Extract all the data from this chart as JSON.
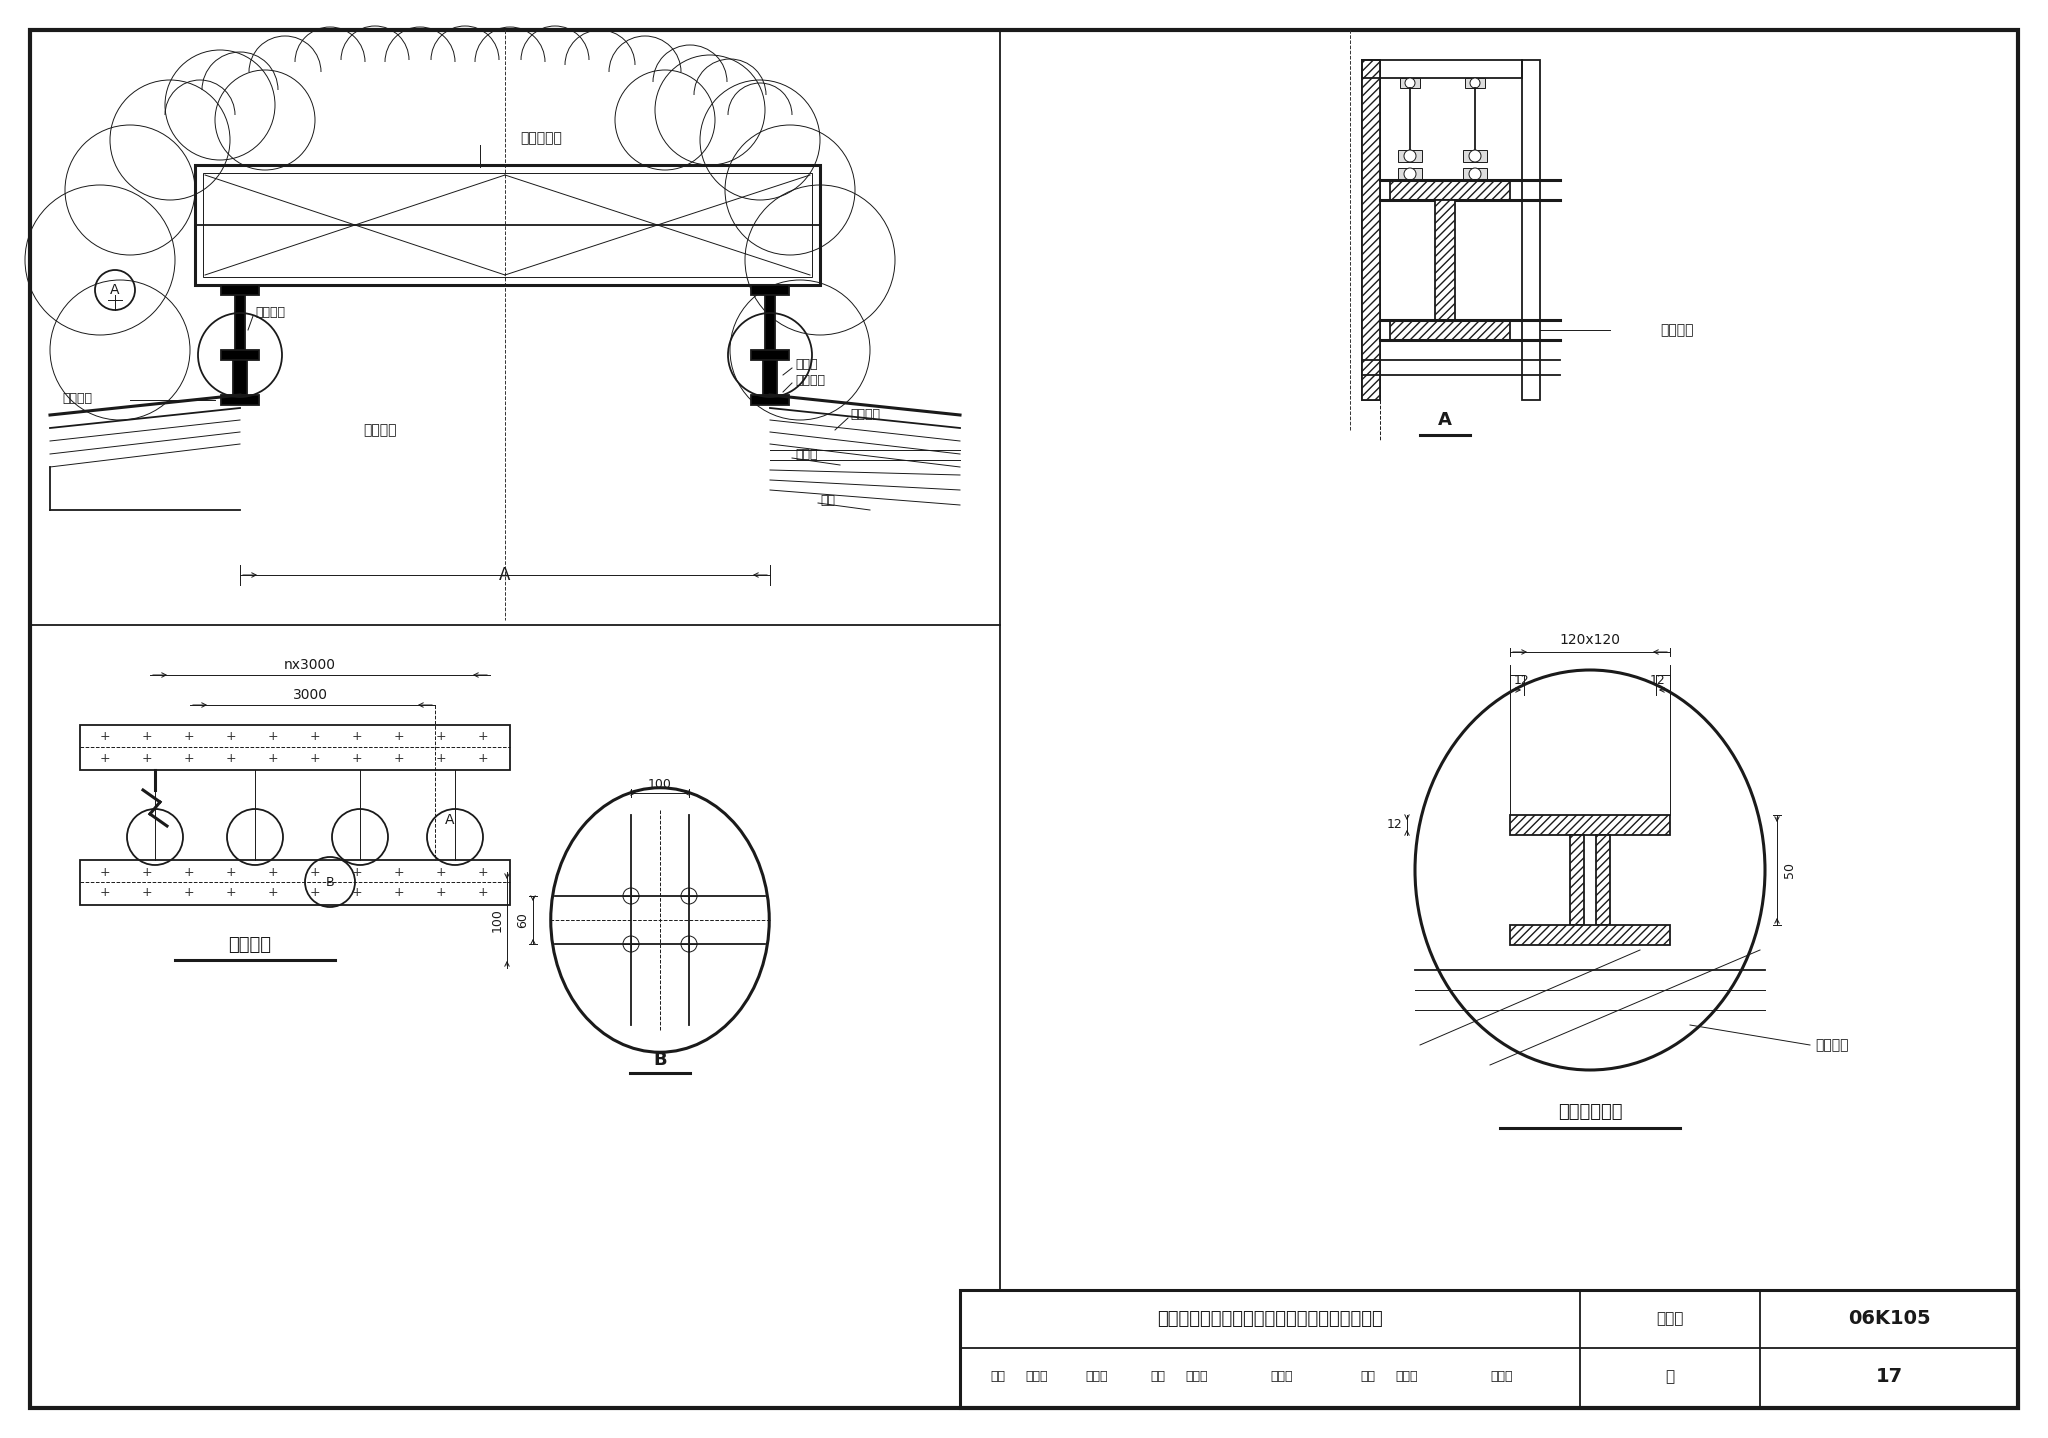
{
  "bg_color": "#ffffff",
  "line_color": "#1a1a1a",
  "title_main": "流线型屋顶自然通风器钢结构屋脊上安装示意图",
  "label_tujihao": "图集号",
  "label_06k105": "06K105",
  "label_shenhe": "审核",
  "label_wendubin": "温度宾",
  "label_jiaodui": "校对",
  "label_wangchaohuang": "汪朝辉",
  "label_chenzhao": "陈朝晖",
  "label_sheji": "设计",
  "label_zhaoliMin": "赵立民",
  "label_signature2": "孔立民",
  "label_ye": "页",
  "label_17": "17",
  "label_jichupingmian": "基础平面",
  "label_zhaopinggangjiantujian": "找平钢墩筒图",
  "label_tonGFengqiDiZuo": "通风器底座",
  "label_xingGangJiChu": "型钢基础",
  "label_zhaoPingGangDun": "找平钢墩",
  "label_wuDingGangLiang": "屋顶钢梁",
  "label_nishiban": "泥水板",
  "label_paomutangtou": "泡沫塘头",
  "label_yaxingGangBan": "压型钢板",
  "label_paishuiban": "挡水板",
  "label_tiaoTiao": "檩条",
  "label_nx3000": "nx3000",
  "label_3000": "3000",
  "label_100": "100",
  "label_60": "60",
  "label_120x120": "120x120",
  "label_12": "12",
  "label_50": "50",
  "label_wudinggangLiang2": "屋顶钢梁",
  "label_xingGangJiChu2": "型钢基础",
  "label_A": "A",
  "label_B": "B"
}
